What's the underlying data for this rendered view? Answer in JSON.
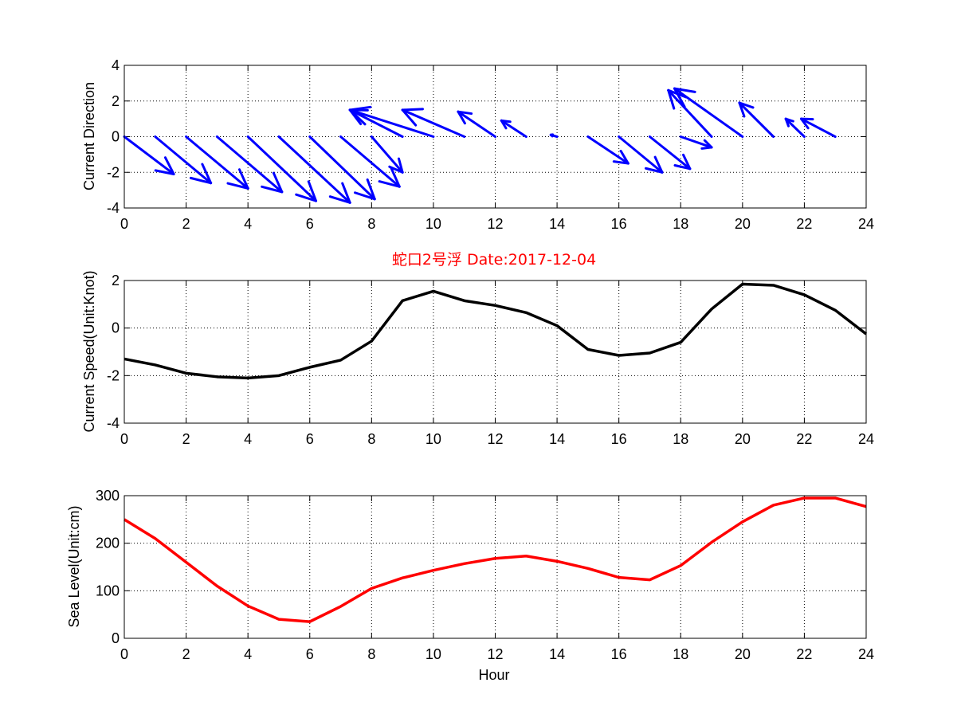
{
  "title": "蛇口2号浮   Date:2017-12-04",
  "colors": {
    "direction": "#0000ff",
    "speed": "#000000",
    "sea_level": "#ff0000",
    "title": "#ff0000"
  },
  "chart_data": [
    {
      "type": "quiver",
      "ylabel": "Current Direction",
      "xlim": [
        0,
        24
      ],
      "ylim": [
        -4,
        4
      ],
      "xticks": [
        0,
        2,
        4,
        6,
        8,
        10,
        12,
        14,
        16,
        18,
        20,
        22,
        24
      ],
      "yticks": [
        -4,
        -2,
        0,
        2,
        4
      ],
      "grid": true,
      "vectors": [
        {
          "x": 0,
          "y": 0,
          "u": 1.6,
          "v": -2.1
        },
        {
          "x": 1,
          "y": 0,
          "u": 1.8,
          "v": -2.6
        },
        {
          "x": 2,
          "y": 0,
          "u": 2.0,
          "v": -2.9
        },
        {
          "x": 3,
          "y": 0,
          "u": 2.1,
          "v": -3.1
        },
        {
          "x": 4,
          "y": 0,
          "u": 2.2,
          "v": -3.6
        },
        {
          "x": 5,
          "y": 0,
          "u": 2.3,
          "v": -3.7
        },
        {
          "x": 6,
          "y": 0,
          "u": 2.1,
          "v": -3.5
        },
        {
          "x": 7,
          "y": 0,
          "u": 1.9,
          "v": -2.8
        },
        {
          "x": 8,
          "y": 0,
          "u": 1.0,
          "v": -2.0
        },
        {
          "x": 9,
          "y": 0,
          "u": -1.7,
          "v": 1.5
        },
        {
          "x": 10,
          "y": 0,
          "u": -2.7,
          "v": 1.5
        },
        {
          "x": 11,
          "y": 0,
          "u": -2.0,
          "v": 1.5
        },
        {
          "x": 12,
          "y": 0,
          "u": -1.2,
          "v": 1.4
        },
        {
          "x": 13,
          "y": 0,
          "u": -0.8,
          "v": 0.9
        },
        {
          "x": 14,
          "y": 0,
          "u": -0.2,
          "v": 0.1
        },
        {
          "x": 15,
          "y": 0,
          "u": 1.3,
          "v": -1.5
        },
        {
          "x": 16,
          "y": 0,
          "u": 1.4,
          "v": -2.0
        },
        {
          "x": 17,
          "y": 0,
          "u": 1.3,
          "v": -1.8
        },
        {
          "x": 18,
          "y": 0,
          "u": 1.0,
          "v": -0.6
        },
        {
          "x": 19,
          "y": 0,
          "u": -1.4,
          "v": 2.6
        },
        {
          "x": 20,
          "y": 0,
          "u": -2.2,
          "v": 2.7
        },
        {
          "x": 21,
          "y": 0,
          "u": -1.1,
          "v": 1.9
        },
        {
          "x": 22,
          "y": 0,
          "u": -0.6,
          "v": 1.0
        },
        {
          "x": 23,
          "y": 0,
          "u": -1.1,
          "v": 1.0
        }
      ]
    },
    {
      "type": "line",
      "ylabel": "Current Speed(Unit:Knot)",
      "xlim": [
        0,
        24
      ],
      "ylim": [
        -4,
        2
      ],
      "xticks": [
        0,
        2,
        4,
        6,
        8,
        10,
        12,
        14,
        16,
        18,
        20,
        22,
        24
      ],
      "yticks": [
        -4,
        -2,
        0,
        2
      ],
      "grid": true,
      "series": [
        {
          "x": [
            0,
            1,
            2,
            3,
            4,
            5,
            6,
            7,
            8,
            9,
            10,
            11,
            12,
            13,
            14,
            15,
            16,
            17,
            18,
            19,
            20,
            21,
            22,
            23,
            24
          ],
          "y": [
            -1.3,
            -1.55,
            -1.9,
            -2.05,
            -2.1,
            -2.0,
            -1.65,
            -1.35,
            -0.55,
            1.15,
            1.55,
            1.15,
            0.95,
            0.65,
            0.1,
            -0.9,
            -1.15,
            -1.05,
            -0.6,
            0.8,
            1.85,
            1.8,
            1.4,
            0.75,
            -0.25
          ]
        }
      ]
    },
    {
      "type": "line",
      "ylabel": "Sea Level(Unit:cm)",
      "xlabel": "Hour",
      "xlim": [
        0,
        24
      ],
      "ylim": [
        0,
        300
      ],
      "xticks": [
        0,
        2,
        4,
        6,
        8,
        10,
        12,
        14,
        16,
        18,
        20,
        22,
        24
      ],
      "yticks": [
        0,
        100,
        200,
        300
      ],
      "grid": true,
      "series": [
        {
          "x": [
            0,
            1,
            2,
            3,
            4,
            5,
            6,
            7,
            8,
            9,
            10,
            11,
            12,
            13,
            14,
            15,
            16,
            17,
            18,
            19,
            20,
            21,
            22,
            23,
            24
          ],
          "y": [
            250,
            210,
            160,
            110,
            68,
            40,
            35,
            67,
            105,
            127,
            143,
            157,
            168,
            173,
            162,
            147,
            128,
            123,
            153,
            202,
            245,
            280,
            295,
            295,
            277
          ]
        }
      ]
    }
  ]
}
